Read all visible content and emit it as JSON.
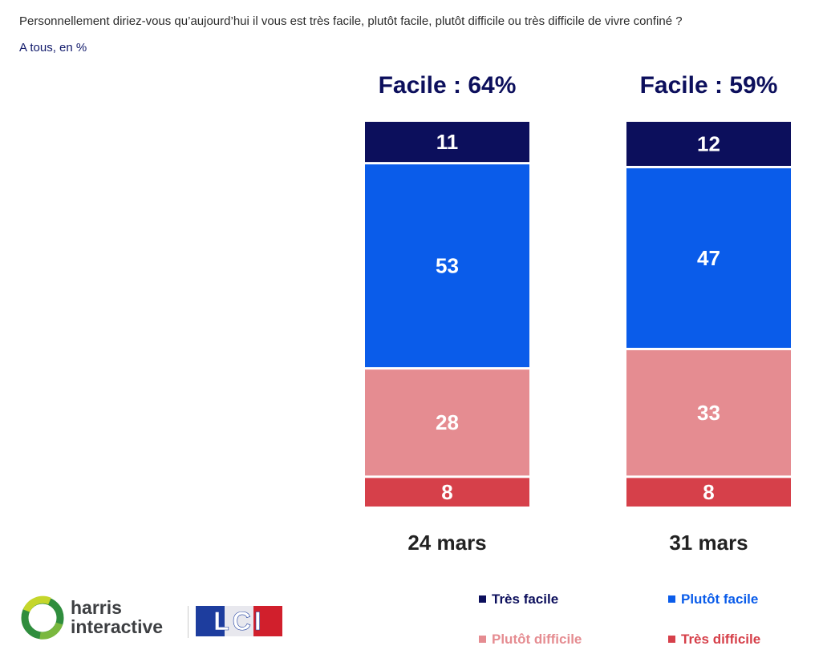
{
  "header": {
    "question": "Personnellement diriez-vous qu’aujourd’hui il vous est très facile, plutôt facile, plutôt difficile ou très difficile de vivre confiné ?",
    "subtitle": "A tous, en %"
  },
  "chart_data": {
    "type": "bar",
    "stacked": true,
    "orientation": "vertical",
    "categories": [
      "24 mars",
      "31 mars"
    ],
    "totals_labels": [
      "Facile : 64%",
      "Facile : 59%"
    ],
    "series": [
      {
        "name": "Très facile",
        "values": [
          11,
          12
        ],
        "color": "#0c0f5c",
        "label_color": "#ffffff"
      },
      {
        "name": "Plutôt facile",
        "values": [
          53,
          47
        ],
        "color": "#0a5cea",
        "label_color": "#ffffff"
      },
      {
        "name": "Plutôt difficile",
        "values": [
          28,
          33
        ],
        "color": "#e58c91",
        "label_color": "#ffffff"
      },
      {
        "name": "Très difficile",
        "values": [
          8,
          8
        ],
        "color": "#d6404a",
        "label_color": "#ffffff"
      }
    ],
    "ylim": [
      0,
      100
    ],
    "grid": false,
    "legend_position": "bottom-right"
  },
  "logos": {
    "harris_line1": "harris",
    "harris_line2": "interactive",
    "lci": "LCI"
  }
}
